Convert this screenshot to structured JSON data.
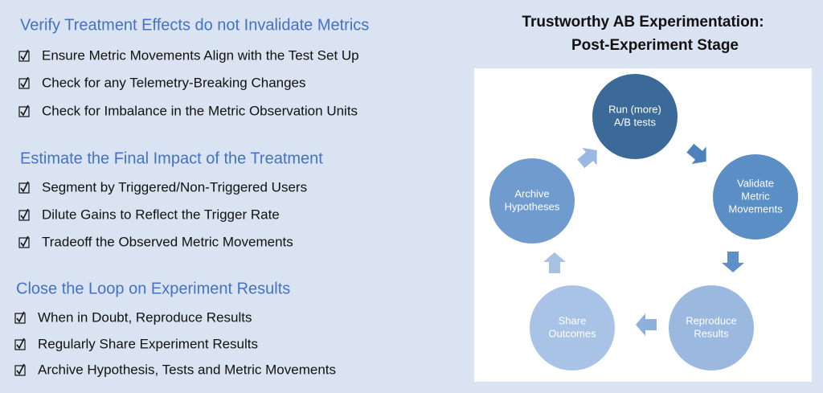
{
  "sections": [
    {
      "title": "Verify Treatment Effects do not Invalidate Metrics",
      "items": [
        "Ensure Metric Movements Align with the Test Set Up",
        "Check for any Telemetry-Breaking Changes",
        "Check for Imbalance in the Metric Observation Units"
      ]
    },
    {
      "title": "Estimate the Final Impact of the Treatment",
      "items": [
        "Segment by Triggered/Non-Triggered Users",
        "Dilute Gains to Reflect the Trigger Rate",
        "Tradeoff the Observed Metric Movements"
      ]
    },
    {
      "title": "Close the Loop on Experiment Results",
      "items": [
        "When in Doubt, Reproduce Results",
        "Regularly Share Experiment Results",
        "Archive Hypothesis, Tests and Metric Movements"
      ]
    }
  ],
  "diagram": {
    "title": [
      "Trustworthy AB Experimentation:",
      "Post-Experiment Stage"
    ],
    "nodes": [
      {
        "label": [
          "Run (more)",
          "A/B tests"
        ]
      },
      {
        "label": [
          "Validate",
          "Metric",
          "Movements"
        ]
      },
      {
        "label": [
          "Reproduce",
          "Results"
        ]
      },
      {
        "label": [
          "Share",
          "Outcomes"
        ]
      },
      {
        "label": [
          "Archive",
          "Hypotheses"
        ]
      }
    ]
  }
}
